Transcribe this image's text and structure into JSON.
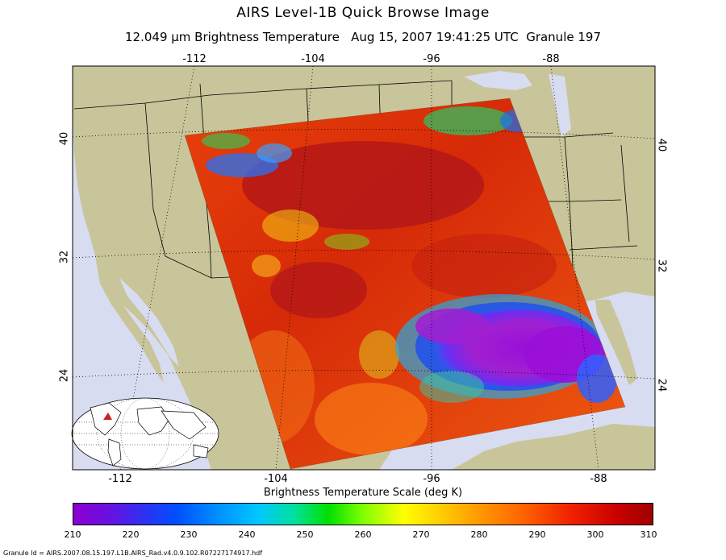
{
  "header": {
    "title": "AIRS Level-1B Quick Browse Image",
    "subtitle": "12.049 μm Brightness Temperature   Aug 15, 2007 19:41:25 UTC  Granule 197"
  },
  "map": {
    "lon_labels": [
      "-112",
      "-104",
      "-96",
      "-88"
    ],
    "lat_labels": [
      "40",
      "32",
      "24"
    ],
    "colors": {
      "land": "#c9c59a",
      "ocean": "#d8dcf0",
      "coast": "#000000",
      "border": "#000000"
    }
  },
  "colorbar": {
    "title": "Brightness Temperature Scale (deg K)",
    "ticks": [
      "210",
      "220",
      "230",
      "240",
      "250",
      "260",
      "270",
      "280",
      "290",
      "300",
      "310"
    ],
    "range": [
      210,
      310
    ]
  },
  "footer": {
    "granule_id": "Granule Id = AIRS.2007.08.15.197.L1B.AIRS_Rad.v4.0.9.102.R07227174917.hdf"
  }
}
